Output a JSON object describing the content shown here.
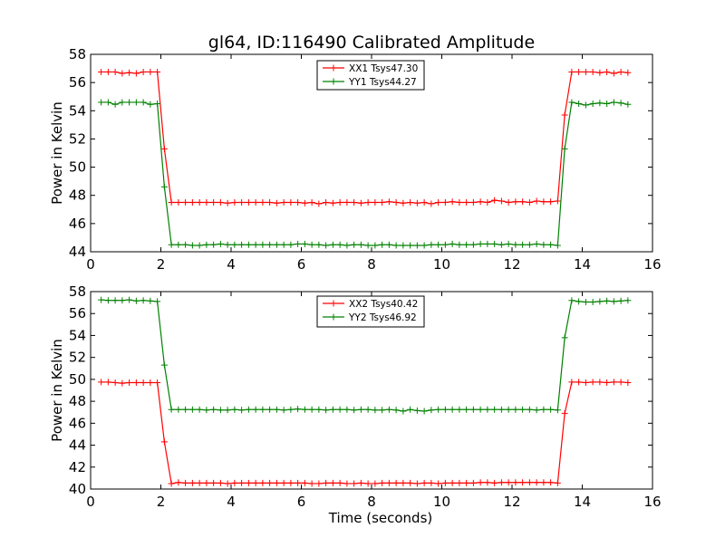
{
  "figure": {
    "title": "gl64, ID:116490 Calibrated Amplitude"
  },
  "chart_data": [
    {
      "type": "line",
      "title": "gl64, ID:116490 Calibrated Amplitude",
      "xlabel": "",
      "ylabel": "Power in Kelvin",
      "xlim": [
        0,
        16
      ],
      "ylim": [
        44,
        58
      ],
      "xticks": [
        0,
        2,
        4,
        6,
        8,
        10,
        12,
        14,
        16
      ],
      "yticks": [
        44,
        46,
        48,
        50,
        52,
        54,
        56,
        58
      ],
      "grid": false,
      "legend_position": "top-center",
      "x": [
        0.3,
        0.5,
        0.7,
        0.9,
        1.1,
        1.3,
        1.5,
        1.7,
        1.9,
        2.1,
        2.3,
        2.5,
        2.7,
        2.9,
        3.1,
        3.3,
        3.5,
        3.7,
        3.9,
        4.1,
        4.3,
        4.5,
        4.7,
        4.9,
        5.1,
        5.3,
        5.5,
        5.7,
        5.9,
        6.1,
        6.3,
        6.5,
        6.7,
        6.9,
        7.1,
        7.3,
        7.5,
        7.7,
        7.9,
        8.1,
        8.3,
        8.5,
        8.7,
        8.9,
        9.1,
        9.3,
        9.5,
        9.7,
        9.9,
        10.1,
        10.3,
        10.5,
        10.7,
        10.9,
        11.1,
        11.3,
        11.5,
        11.7,
        11.9,
        12.1,
        12.3,
        12.5,
        12.7,
        12.9,
        13.1,
        13.3,
        13.5,
        13.7,
        13.9,
        14.1,
        14.3,
        14.5,
        14.7,
        14.9,
        15.1,
        15.3
      ],
      "series": [
        {
          "name": "XX1 Tsys47.30",
          "color": "#ff0000",
          "values": [
            56.75,
            56.75,
            56.75,
            56.65,
            56.7,
            56.65,
            56.75,
            56.75,
            56.75,
            51.3,
            47.5,
            47.5,
            47.5,
            47.5,
            47.5,
            47.5,
            47.5,
            47.5,
            47.45,
            47.5,
            47.5,
            47.5,
            47.5,
            47.5,
            47.5,
            47.45,
            47.5,
            47.5,
            47.5,
            47.45,
            47.5,
            47.4,
            47.5,
            47.45,
            47.5,
            47.5,
            47.5,
            47.45,
            47.5,
            47.5,
            47.5,
            47.55,
            47.5,
            47.45,
            47.5,
            47.45,
            47.5,
            47.4,
            47.5,
            47.5,
            47.55,
            47.5,
            47.5,
            47.5,
            47.55,
            47.5,
            47.65,
            47.6,
            47.5,
            47.55,
            47.55,
            47.5,
            47.6,
            47.55,
            47.55,
            47.6,
            53.7,
            56.75,
            56.75,
            56.75,
            56.75,
            56.7,
            56.75,
            56.65,
            56.75,
            56.7
          ]
        },
        {
          "name": "YY1 Tsys44.27",
          "color": "#008000",
          "values": [
            54.6,
            54.6,
            54.45,
            54.6,
            54.6,
            54.6,
            54.6,
            54.45,
            54.5,
            48.6,
            44.5,
            44.5,
            44.5,
            44.45,
            44.45,
            44.5,
            44.5,
            44.55,
            44.5,
            44.5,
            44.5,
            44.5,
            44.5,
            44.5,
            44.5,
            44.5,
            44.5,
            44.5,
            44.55,
            44.55,
            44.5,
            44.5,
            44.45,
            44.5,
            44.5,
            44.45,
            44.5,
            44.5,
            44.45,
            44.45,
            44.5,
            44.5,
            44.45,
            44.45,
            44.45,
            44.45,
            44.45,
            44.5,
            44.5,
            44.5,
            44.55,
            44.5,
            44.5,
            44.5,
            44.55,
            44.55,
            44.55,
            44.5,
            44.55,
            44.5,
            44.5,
            44.5,
            44.55,
            44.5,
            44.5,
            44.45,
            51.3,
            54.6,
            54.5,
            54.4,
            54.5,
            54.55,
            54.5,
            54.6,
            54.55,
            54.45
          ]
        }
      ]
    },
    {
      "type": "line",
      "title": "",
      "xlabel": "Time (seconds)",
      "ylabel": "Power in Kelvin",
      "xlim": [
        0,
        16
      ],
      "ylim": [
        40,
        58
      ],
      "xticks": [
        0,
        2,
        4,
        6,
        8,
        10,
        12,
        14,
        16
      ],
      "yticks": [
        40,
        42,
        44,
        46,
        48,
        50,
        52,
        54,
        56,
        58
      ],
      "grid": false,
      "legend_position": "top-center",
      "x": [
        0.3,
        0.5,
        0.7,
        0.9,
        1.1,
        1.3,
        1.5,
        1.7,
        1.9,
        2.1,
        2.3,
        2.5,
        2.7,
        2.9,
        3.1,
        3.3,
        3.5,
        3.7,
        3.9,
        4.1,
        4.3,
        4.5,
        4.7,
        4.9,
        5.1,
        5.3,
        5.5,
        5.7,
        5.9,
        6.1,
        6.3,
        6.5,
        6.7,
        6.9,
        7.1,
        7.3,
        7.5,
        7.7,
        7.9,
        8.1,
        8.3,
        8.5,
        8.7,
        8.9,
        9.1,
        9.3,
        9.5,
        9.7,
        9.9,
        10.1,
        10.3,
        10.5,
        10.7,
        10.9,
        11.1,
        11.3,
        11.5,
        11.7,
        11.9,
        12.1,
        12.3,
        12.5,
        12.7,
        12.9,
        13.1,
        13.3,
        13.5,
        13.7,
        13.9,
        14.1,
        14.3,
        14.5,
        14.7,
        14.9,
        15.1,
        15.3
      ],
      "series": [
        {
          "name": "XX2 Tsys40.42",
          "color": "#ff0000",
          "values": [
            49.75,
            49.75,
            49.7,
            49.65,
            49.7,
            49.7,
            49.7,
            49.7,
            49.7,
            44.3,
            40.5,
            40.6,
            40.55,
            40.55,
            40.55,
            40.55,
            40.55,
            40.55,
            40.5,
            40.55,
            40.55,
            40.55,
            40.55,
            40.55,
            40.55,
            40.55,
            40.55,
            40.55,
            40.55,
            40.55,
            40.5,
            40.5,
            40.55,
            40.55,
            40.55,
            40.5,
            40.5,
            40.55,
            40.5,
            40.5,
            40.55,
            40.55,
            40.55,
            40.55,
            40.55,
            40.5,
            40.55,
            40.55,
            40.5,
            40.55,
            40.55,
            40.55,
            40.55,
            40.55,
            40.6,
            40.6,
            40.55,
            40.6,
            40.6,
            40.6,
            40.6,
            40.6,
            40.6,
            40.6,
            40.6,
            40.55,
            46.9,
            49.75,
            49.75,
            49.7,
            49.75,
            49.75,
            49.7,
            49.75,
            49.75,
            49.7
          ]
        },
        {
          "name": "YY2 Tsys46.92",
          "color": "#008000",
          "values": [
            57.25,
            57.2,
            57.2,
            57.2,
            57.25,
            57.15,
            57.2,
            57.15,
            57.1,
            51.3,
            47.25,
            47.25,
            47.25,
            47.25,
            47.25,
            47.2,
            47.25,
            47.2,
            47.2,
            47.25,
            47.2,
            47.25,
            47.25,
            47.25,
            47.25,
            47.25,
            47.2,
            47.25,
            47.3,
            47.25,
            47.25,
            47.25,
            47.2,
            47.25,
            47.25,
            47.25,
            47.2,
            47.25,
            47.25,
            47.2,
            47.2,
            47.25,
            47.2,
            47.1,
            47.25,
            47.15,
            47.1,
            47.2,
            47.25,
            47.25,
            47.25,
            47.25,
            47.25,
            47.25,
            47.25,
            47.25,
            47.25,
            47.25,
            47.25,
            47.25,
            47.25,
            47.25,
            47.2,
            47.25,
            47.25,
            47.2,
            53.8,
            57.2,
            57.1,
            57.05,
            57.05,
            57.1,
            57.15,
            57.1,
            57.15,
            57.2
          ]
        }
      ]
    }
  ]
}
